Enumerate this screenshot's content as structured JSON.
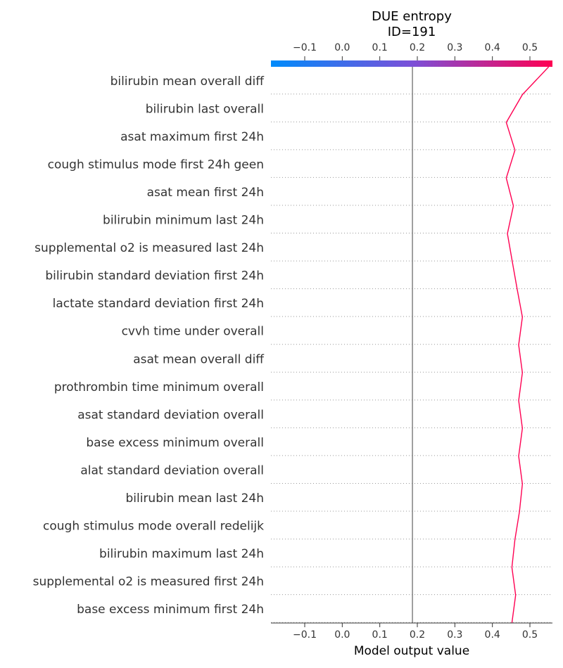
{
  "chart_data": {
    "type": "line",
    "title": "DUE entropy",
    "subtitle": "ID=191",
    "xlabel": "Model output value",
    "xlim": [
      -0.19,
      0.56
    ],
    "xticks": [
      -0.1,
      0.0,
      0.1,
      0.2,
      0.3,
      0.4,
      0.5
    ],
    "xtick_labels": [
      "−0.1",
      "0.0",
      "0.1",
      "0.2",
      "0.3",
      "0.4",
      "0.5"
    ],
    "base_value": 0.187,
    "final_value": 0.55,
    "colors": {
      "low": "#008bfb",
      "mid": "#7b50d8",
      "high": "#ff0052",
      "line": "#ff0052",
      "base_line": "#808080"
    },
    "features": [
      "bilirubin  mean  overall  diff",
      "bilirubin  last  overall",
      "asat  maximum  first 24h",
      "cough stimulus  mode  first 24h  geen",
      "asat  mean  first 24h",
      "bilirubin  minimum  last 24h",
      "supplemental o2  is measured  last 24h",
      "bilirubin  standard deviation  first 24h",
      "lactate  standard deviation  first 24h",
      "cvvh  time under  overall",
      "asat  mean  overall  diff",
      "prothrombin time  minimum  overall",
      "asat  standard deviation  overall",
      "base excess  minimum  overall",
      "alat  standard deviation  overall",
      "bilirubin  mean  last 24h",
      "cough stimulus  mode  overall  redelijk",
      "bilirubin  maximum  last 24h",
      "supplemental o2  is measured  first 24h",
      "base excess  minimum  first 24h"
    ],
    "path_values": [
      0.55,
      0.48,
      0.437,
      0.46,
      0.437,
      0.456,
      0.44,
      0.453,
      0.466,
      0.48,
      0.47,
      0.48,
      0.47,
      0.48,
      0.47,
      0.48,
      0.472,
      0.46,
      0.452,
      0.462,
      0.452
    ]
  }
}
